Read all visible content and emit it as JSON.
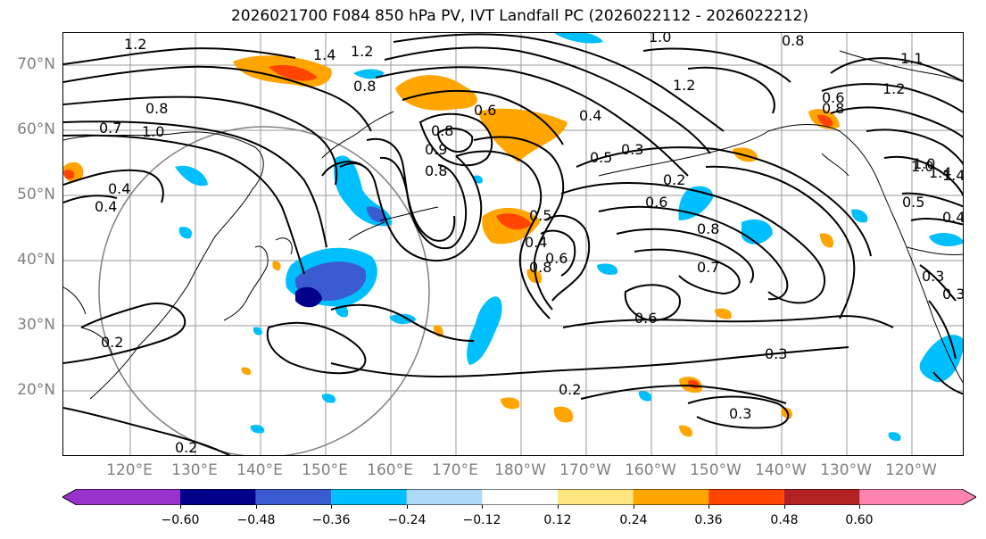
{
  "title": "2026021700 F084 850 hPa PV, IVT Landfall PC (2026022112 - 2026022212)",
  "lat_labels": [
    "70°N",
    "60°N",
    "50°N",
    "40°N",
    "30°N",
    "20°N"
  ],
  "lon_labels": [
    "120°E",
    "130°E",
    "140°E",
    "150°E",
    "160°E",
    "170°E",
    "180°W",
    "170°W",
    "160°W",
    "150°W",
    "140°W",
    "130°W",
    "120°W"
  ],
  "colorbar": {
    "ticks": [
      "−0.60",
      "−0.48",
      "−0.36",
      "−0.24",
      "−0.12",
      "0.12",
      "0.24",
      "0.36",
      "0.48",
      "0.60"
    ],
    "colors": [
      "#9932cc",
      "#00008b",
      "#3b5bd0",
      "#00bfff",
      "#add8f6",
      "#ffffff",
      "#ffe680",
      "#ffa500",
      "#ff4500",
      "#b22222",
      "#ff85b0"
    ]
  },
  "contour_labels": [
    "1.2",
    "1.4",
    "1.2",
    "0.8",
    "1.0",
    "0.8",
    "1.2",
    "1.4",
    "1.0",
    "1.2",
    "0.8",
    "1.0",
    "0.7",
    "0.8",
    "0.8",
    "0.6",
    "0.4",
    "0.4",
    "0.8",
    "0.9",
    "0.3",
    "0.5",
    "0.2",
    "0.6",
    "0.8",
    "0.5",
    "0.6",
    "0.4",
    "0.8",
    "0.7",
    "0.6",
    "0.3",
    "0.3",
    "0.2",
    "0.2",
    "0.2",
    "1.0",
    "1.4",
    "0.5",
    "0.4",
    "0.3",
    "0.3",
    "0.6",
    "1.1",
    "0.4"
  ]
}
